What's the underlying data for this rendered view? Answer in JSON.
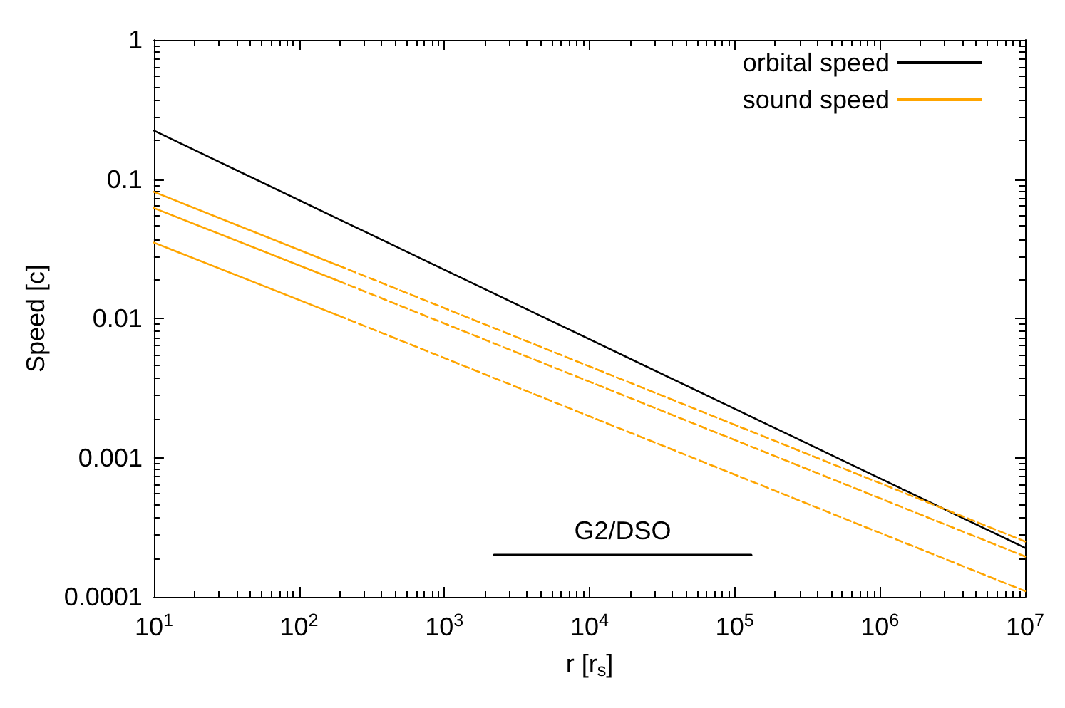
{
  "chart_data": {
    "type": "line",
    "xlabel": "r [r$_{s}$]",
    "ylabel": "Speed [c]",
    "log": "xy",
    "xlim": [
      10,
      10000000
    ],
    "ylim": [
      0.0001,
      1
    ],
    "xticks": [
      {
        "value": 10,
        "label": "10$^{1}$"
      },
      {
        "value": 100,
        "label": "10$^{2}$"
      },
      {
        "value": 1000,
        "label": "10$^{3}$"
      },
      {
        "value": 10000,
        "label": "10$^{4}$"
      },
      {
        "value": 100000,
        "label": "10$^{5}$"
      },
      {
        "value": 1000000,
        "label": "10$^{6}$"
      },
      {
        "value": 10000000,
        "label": "10$^{7}$"
      }
    ],
    "yticks": [
      0.0001,
      0.001,
      0.01,
      0.1,
      1
    ],
    "legend": "top right",
    "grid": false,
    "marker": "none",
    "series": [
      {
        "name": "orbital speed",
        "color": "#000000",
        "x": [
          10,
          10000000
        ],
        "values": [
          0.223,
          0.000225
        ],
        "line_style": "solid"
      },
      {
        "name": "sound speed",
        "color": "#ffa500",
        "x": [
          10,
          186
        ],
        "values": [
          0.081,
          0.024
        ],
        "line_style": "solid"
      },
      {
        "color": "#ffa500",
        "x": [
          10,
          186
        ],
        "values": [
          0.062,
          0.0186
        ],
        "line_style": "solid"
      },
      {
        "color": "#ffa500",
        "x": [
          10,
          186
        ],
        "values": [
          0.035,
          0.0105
        ],
        "line_style": "solid"
      },
      {
        "color": "#ffa500",
        "x": [
          186,
          10000000
        ],
        "values": [
          0.024,
          0.00025
        ],
        "line_style": "dashed"
      },
      {
        "color": "#ffa500",
        "x": [
          186,
          10000000
        ],
        "values": [
          0.0186,
          0.000195
        ],
        "line_style": "dashed"
      },
      {
        "color": "#ffa500",
        "x": [
          186,
          10000000
        ],
        "values": [
          0.0105,
          0.00011
        ],
        "line_style": "dashed"
      },
      {
        "color": "#000000",
        "x": [
          2200,
          130000
        ],
        "values": [
          0.0002,
          0.0002
        ],
        "line_style": "solid"
      }
    ],
    "annotations": [
      "G2/DSO"
    ]
  }
}
